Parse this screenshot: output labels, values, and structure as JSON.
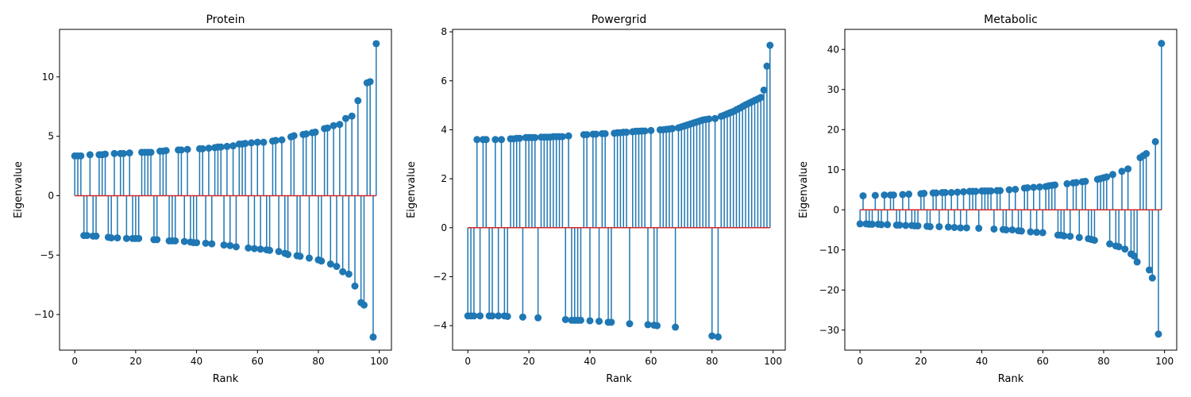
{
  "chart_data": [
    {
      "type": "stem",
      "title": "Protein",
      "xlabel": "Rank",
      "ylabel": "Eigenvalue",
      "xlim": [
        -5,
        104
      ],
      "ylim": [
        -13,
        14
      ],
      "xticks": [
        0,
        20,
        40,
        60,
        80,
        100
      ],
      "yticks": [
        -10,
        -5,
        0,
        5,
        10
      ],
      "ytick_labels": [
        "−10",
        "−5",
        "0",
        "5",
        "10"
      ],
      "baseline": 0,
      "marker_color": "#1f77b4",
      "stem_color": "#1f77b4",
      "baseline_color": "#d62728",
      "values": [
        3.35,
        3.35,
        3.35,
        -3.35,
        -3.35,
        3.45,
        -3.4,
        -3.4,
        3.45,
        3.45,
        3.5,
        -3.5,
        -3.55,
        3.55,
        -3.55,
        3.55,
        3.55,
        -3.6,
        3.6,
        -3.6,
        -3.6,
        -3.6,
        3.65,
        3.65,
        3.65,
        3.65,
        -3.7,
        -3.7,
        3.75,
        3.75,
        3.8,
        -3.8,
        -3.8,
        -3.8,
        3.85,
        3.85,
        -3.85,
        3.9,
        -3.9,
        -3.95,
        -3.95,
        3.95,
        3.95,
        -4.0,
        4.0,
        -4.05,
        4.05,
        4.1,
        4.1,
        -4.15,
        4.15,
        -4.2,
        4.2,
        -4.3,
        4.35,
        4.35,
        4.4,
        -4.4,
        4.45,
        -4.45,
        4.5,
        -4.5,
        4.5,
        -4.55,
        -4.6,
        4.6,
        4.65,
        -4.7,
        4.7,
        -4.85,
        -4.95,
        4.95,
        5.05,
        -5.05,
        -5.1,
        5.15,
        5.2,
        -5.25,
        5.3,
        5.35,
        -5.4,
        -5.5,
        5.65,
        5.7,
        -5.75,
        5.9,
        -5.95,
        6.0,
        -6.4,
        6.5,
        -6.6,
        6.7,
        -7.6,
        8.0,
        -9.0,
        -9.2,
        9.5,
        9.6,
        -11.9,
        12.8
      ]
    },
    {
      "type": "stem",
      "title": "Powergrid",
      "xlabel": "Rank",
      "ylabel": "Eigenvalue",
      "xlim": [
        -5,
        104
      ],
      "ylim": [
        -5.0,
        8.1
      ],
      "xticks": [
        0,
        20,
        40,
        60,
        80,
        100
      ],
      "yticks": [
        -4,
        -2,
        0,
        2,
        4,
        6,
        8
      ],
      "ytick_labels": [
        "−4",
        "−2",
        "0",
        "2",
        "4",
        "6",
        "8"
      ],
      "baseline": 0,
      "marker_color": "#1f77b4",
      "stem_color": "#1f77b4",
      "baseline_color": "#d62728",
      "values": [
        -3.6,
        -3.6,
        -3.6,
        3.6,
        -3.6,
        3.6,
        3.6,
        -3.6,
        -3.6,
        3.6,
        -3.6,
        3.6,
        -3.6,
        -3.62,
        3.63,
        3.63,
        3.65,
        3.65,
        -3.65,
        3.68,
        3.68,
        3.68,
        3.68,
        -3.68,
        3.7,
        3.7,
        3.7,
        3.7,
        3.72,
        3.72,
        3.72,
        3.72,
        -3.75,
        3.75,
        -3.78,
        -3.78,
        -3.78,
        -3.78,
        3.8,
        3.8,
        -3.8,
        3.82,
        3.82,
        -3.82,
        3.84,
        3.84,
        -3.86,
        -3.86,
        3.86,
        3.88,
        3.88,
        3.9,
        3.9,
        -3.92,
        3.92,
        3.94,
        3.94,
        3.95,
        3.95,
        -3.96,
        3.97,
        -3.98,
        -4.0,
        4.0,
        4.0,
        4.02,
        4.03,
        4.05,
        -4.06,
        4.08,
        4.12,
        4.16,
        4.2,
        4.24,
        4.28,
        4.32,
        4.36,
        4.4,
        4.42,
        4.44,
        -4.42,
        4.46,
        -4.46,
        4.55,
        4.6,
        4.65,
        4.7,
        4.75,
        4.82,
        4.88,
        4.95,
        5.02,
        5.08,
        5.14,
        5.2,
        5.26,
        5.32,
        5.62,
        6.6,
        7.45
      ]
    },
    {
      "type": "stem",
      "title": "Metabolic",
      "xlabel": "Rank",
      "ylabel": "Eigenvalue",
      "xlim": [
        -5,
        104
      ],
      "ylim": [
        -35,
        45
      ],
      "xticks": [
        0,
        20,
        40,
        60,
        80,
        100
      ],
      "yticks": [
        -30,
        -20,
        -10,
        0,
        10,
        20,
        30,
        40
      ],
      "ytick_labels": [
        "−30",
        "−20",
        "−10",
        "0",
        "10",
        "20",
        "30",
        "40"
      ],
      "baseline": 0,
      "marker_color": "#1f77b4",
      "stem_color": "#1f77b4",
      "baseline_color": "#d62728",
      "values": [
        -3.5,
        3.5,
        -3.5,
        -3.6,
        -3.6,
        3.6,
        -3.6,
        -3.7,
        3.7,
        -3.7,
        3.7,
        3.7,
        -3.8,
        -3.8,
        3.8,
        -3.9,
        3.9,
        -3.9,
        -4.0,
        -4.0,
        4.0,
        4.1,
        -4.1,
        -4.2,
        4.2,
        4.2,
        -4.2,
        4.3,
        4.3,
        -4.3,
        4.3,
        -4.4,
        4.4,
        -4.5,
        4.5,
        -4.5,
        4.6,
        4.6,
        4.6,
        -4.6,
        4.7,
        4.7,
        4.7,
        4.7,
        -4.8,
        4.8,
        4.8,
        -4.9,
        -5.0,
        5.0,
        -5.0,
        5.1,
        -5.2,
        -5.3,
        5.4,
        5.5,
        -5.5,
        5.6,
        -5.6,
        5.7,
        -5.7,
        5.8,
        6.0,
        6.1,
        6.2,
        -6.3,
        -6.3,
        -6.5,
        6.5,
        -6.6,
        6.7,
        6.8,
        -6.9,
        7.0,
        7.1,
        -7.2,
        -7.4,
        -7.6,
        7.6,
        7.8,
        8.0,
        8.2,
        -8.5,
        8.8,
        -9.0,
        -9.2,
        9.6,
        -9.8,
        10.2,
        -11.0,
        -11.5,
        -13.0,
        13.0,
        13.5,
        14.0,
        -15.0,
        -17.0,
        17.0,
        -31.0,
        41.5
      ]
    }
  ]
}
